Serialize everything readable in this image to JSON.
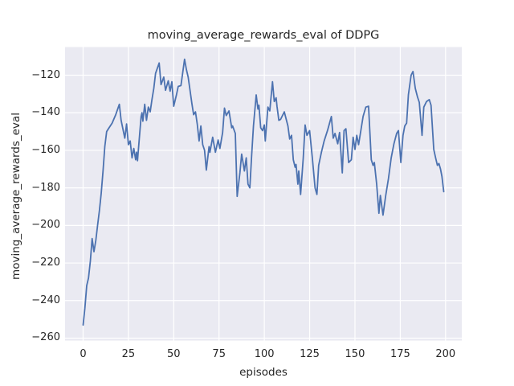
{
  "colors": {
    "page_background": "#ffffff",
    "axes_background": "#eaeaf2",
    "grid": "#ffffff",
    "line": "#4c72b0",
    "text": "#262626"
  },
  "chart_data": {
    "type": "line",
    "title": "moving_average_rewards_eval of DDPG",
    "xlabel": "episodes",
    "ylabel": "moving_average_rewards_eval",
    "grid": true,
    "legend": "none",
    "x_ticks": [
      0,
      25,
      50,
      75,
      100,
      125,
      150,
      175,
      200
    ],
    "x_tick_labels": [
      "0",
      "25",
      "50",
      "75",
      "100",
      "125",
      "150",
      "175",
      "200"
    ],
    "y_ticks": [
      -120,
      -140,
      -160,
      -180,
      -200,
      -220,
      -240,
      -260
    ],
    "y_tick_labels": [
      "−120",
      "−140",
      "−160",
      "−180",
      "−200",
      "−220",
      "−240",
      "−260"
    ],
    "xlim": [
      -9.95,
      208.95
    ],
    "ylim": [
      -261.3,
      -105.0
    ],
    "series": [
      {
        "name": "moving_average_rewards_eval",
        "color": "#4c72b0",
        "points": [
          [
            0,
            -253
          ],
          [
            1,
            -244
          ],
          [
            2,
            -232
          ],
          [
            3,
            -228
          ],
          [
            4,
            -219
          ],
          [
            5,
            -207
          ],
          [
            6,
            -214
          ],
          [
            7,
            -208
          ],
          [
            8,
            -200
          ],
          [
            9,
            -192
          ],
          [
            10,
            -183
          ],
          [
            11,
            -171
          ],
          [
            12,
            -158
          ],
          [
            13,
            -150
          ],
          [
            14,
            -148.5
          ],
          [
            16,
            -145.5
          ],
          [
            18,
            -141
          ],
          [
            20,
            -135.5
          ],
          [
            21,
            -144
          ],
          [
            23,
            -153.5
          ],
          [
            24,
            -146
          ],
          [
            25,
            -157
          ],
          [
            26,
            -155
          ],
          [
            27,
            -164
          ],
          [
            28,
            -159
          ],
          [
            29,
            -165
          ],
          [
            29.5,
            -161
          ],
          [
            30,
            -165.5
          ],
          [
            31,
            -154
          ],
          [
            32,
            -142
          ],
          [
            32.5,
            -140
          ],
          [
            33,
            -144.5
          ],
          [
            34,
            -135.5
          ],
          [
            35,
            -144
          ],
          [
            36,
            -137
          ],
          [
            37,
            -139.5
          ],
          [
            38,
            -133
          ],
          [
            39,
            -127
          ],
          [
            40,
            -119
          ],
          [
            42,
            -113.5
          ],
          [
            43,
            -125
          ],
          [
            44.5,
            -121
          ],
          [
            45.5,
            -128
          ],
          [
            47,
            -123
          ],
          [
            48,
            -128.5
          ],
          [
            49,
            -123.5
          ],
          [
            50,
            -136.5
          ],
          [
            51.5,
            -130.5
          ],
          [
            52.5,
            -126
          ],
          [
            54,
            -125.5
          ],
          [
            56,
            -111.5
          ],
          [
            57,
            -117
          ],
          [
            58,
            -121
          ],
          [
            59,
            -128
          ],
          [
            60,
            -135
          ],
          [
            61,
            -141
          ],
          [
            62,
            -139.5
          ],
          [
            63,
            -146
          ],
          [
            64,
            -155
          ],
          [
            65,
            -147
          ],
          [
            66,
            -157
          ],
          [
            67,
            -160
          ],
          [
            68,
            -170.5
          ],
          [
            69.5,
            -158
          ],
          [
            70,
            -161
          ],
          [
            71.5,
            -153
          ],
          [
            73,
            -161
          ],
          [
            74.5,
            -154.5
          ],
          [
            75.5,
            -159
          ],
          [
            77,
            -150.5
          ],
          [
            78,
            -137.5
          ],
          [
            79,
            -141.5
          ],
          [
            80.5,
            -139
          ],
          [
            82,
            -148
          ],
          [
            82.5,
            -147
          ],
          [
            84,
            -151
          ],
          [
            85,
            -184.5
          ],
          [
            86.5,
            -172
          ],
          [
            87.5,
            -162
          ],
          [
            89,
            -171
          ],
          [
            90,
            -164
          ],
          [
            91,
            -178
          ],
          [
            92,
            -180
          ],
          [
            93,
            -163
          ],
          [
            94,
            -147
          ],
          [
            95.5,
            -130.5
          ],
          [
            96.5,
            -138
          ],
          [
            97,
            -136
          ],
          [
            98,
            -148
          ],
          [
            99,
            -149.5
          ],
          [
            100,
            -146.5
          ],
          [
            100.5,
            -155
          ],
          [
            102,
            -137
          ],
          [
            103,
            -139
          ],
          [
            104.5,
            -123.5
          ],
          [
            105.5,
            -134
          ],
          [
            106.5,
            -132
          ],
          [
            107,
            -136.5
          ],
          [
            108,
            -144
          ],
          [
            109,
            -143.5
          ],
          [
            111,
            -139.5
          ],
          [
            113,
            -147
          ],
          [
            114,
            -154
          ],
          [
            115,
            -152
          ],
          [
            116,
            -165
          ],
          [
            117,
            -169
          ],
          [
            117.5,
            -167.5
          ],
          [
            118.5,
            -178
          ],
          [
            119,
            -171
          ],
          [
            120,
            -183.5
          ],
          [
            121.5,
            -164
          ],
          [
            122.5,
            -146.5
          ],
          [
            123.5,
            -152
          ],
          [
            125,
            -149.5
          ],
          [
            126.5,
            -164
          ],
          [
            128,
            -180
          ],
          [
            129,
            -183.5
          ],
          [
            130,
            -168
          ],
          [
            131.5,
            -161
          ],
          [
            133,
            -155
          ],
          [
            135,
            -149
          ],
          [
            137,
            -142
          ],
          [
            138,
            -153.5
          ],
          [
            139,
            -151
          ],
          [
            140.5,
            -156.5
          ],
          [
            141.5,
            -150.5
          ],
          [
            143,
            -172
          ],
          [
            144,
            -149.5
          ],
          [
            145,
            -148.5
          ],
          [
            146.5,
            -166.5
          ],
          [
            148,
            -165
          ],
          [
            149,
            -153
          ],
          [
            150,
            -159.5
          ],
          [
            151,
            -152
          ],
          [
            152,
            -157
          ],
          [
            154.5,
            -142
          ],
          [
            156,
            -137
          ],
          [
            157.5,
            -136.5
          ],
          [
            159,
            -165
          ],
          [
            160,
            -168
          ],
          [
            160.7,
            -166.5
          ],
          [
            162,
            -178
          ],
          [
            163.2,
            -193.5
          ],
          [
            164,
            -184
          ],
          [
            165.5,
            -194.5
          ],
          [
            167,
            -184
          ],
          [
            168.5,
            -175
          ],
          [
            170,
            -164
          ],
          [
            171.5,
            -156.5
          ],
          [
            173,
            -151
          ],
          [
            174,
            -149.5
          ],
          [
            175.3,
            -166.5
          ],
          [
            176.5,
            -152
          ],
          [
            177.5,
            -147
          ],
          [
            178.5,
            -145.5
          ],
          [
            179.5,
            -130.5
          ],
          [
            181,
            -120
          ],
          [
            182,
            -118
          ],
          [
            183.3,
            -127
          ],
          [
            184.5,
            -131.5
          ],
          [
            185.5,
            -134.5
          ],
          [
            187,
            -152
          ],
          [
            188,
            -137
          ],
          [
            189.5,
            -134
          ],
          [
            191,
            -133
          ],
          [
            192,
            -136
          ],
          [
            193.5,
            -159.5
          ],
          [
            194.5,
            -164
          ],
          [
            195.5,
            -168
          ],
          [
            196.3,
            -167
          ],
          [
            197.2,
            -170
          ],
          [
            198,
            -174
          ],
          [
            199,
            -182
          ]
        ]
      }
    ]
  }
}
